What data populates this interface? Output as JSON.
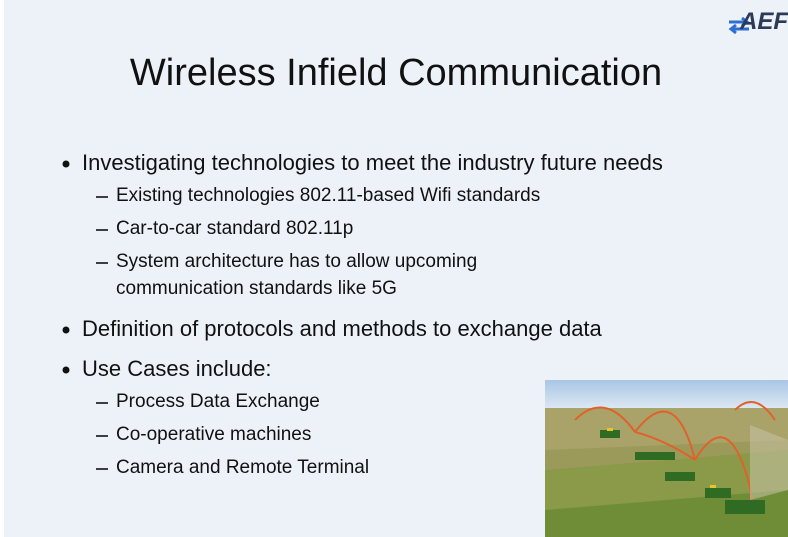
{
  "logo": "AEF",
  "title": "Wireless Infield Communication",
  "bullets": [
    {
      "text": "Investigating technologies to meet the industry future needs",
      "sub": [
        "Existing technologies 802.11-based Wifi standards",
        "Car-to-car standard 802.11p",
        "System architecture has to allow upcoming communication standards like 5G"
      ]
    },
    {
      "text": "Definition of protocols and methods to exchange data",
      "sub": []
    },
    {
      "text": "Use Cases include:",
      "sub": [
        "Process Data Exchange",
        "Co-operative machines",
        "Camera and Remote Terminal"
      ]
    }
  ]
}
